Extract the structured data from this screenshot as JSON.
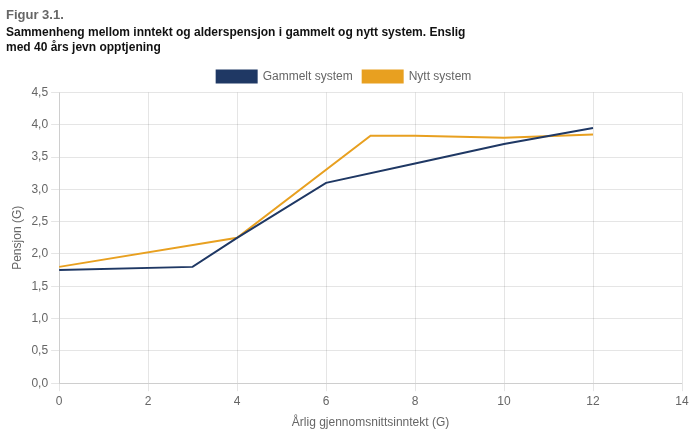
{
  "chart_data": {
    "type": "line",
    "title": "Figur 3.1.",
    "subtitle": [
      "Sammenheng mellom inntekt og alderspensjon i gammelt og nytt system. Enslig",
      "med 40 års jevn opptjening"
    ],
    "x_label": "Årlig gjennomsnittsinntekt (G)",
    "y_label": "Pensjon (G)",
    "series": [
      {
        "name": "Gammelt system",
        "color": "#1f3864",
        "x": [
          0,
          3,
          4,
          6,
          8,
          10,
          12
        ],
        "values": [
          1.75,
          1.8,
          2.25,
          3.1,
          3.4,
          3.7,
          3.95
        ]
      },
      {
        "name": "Nytt system",
        "color": "#e8a020",
        "x": [
          0,
          4,
          7,
          8,
          10,
          12
        ],
        "values": [
          1.8,
          2.25,
          3.83,
          3.83,
          3.8,
          3.85
        ]
      }
    ],
    "xlim": [
      0,
      14
    ],
    "ylim": [
      0,
      4.5
    ],
    "xticks": [
      0,
      2,
      4,
      6,
      8,
      10,
      12,
      14
    ],
    "yticks": [
      {
        "value": 0.0,
        "label": "0,0"
      },
      {
        "value": 0.5,
        "label": "0,5"
      },
      {
        "value": 1.0,
        "label": "1,0"
      },
      {
        "value": 1.5,
        "label": "1,5"
      },
      {
        "value": 2.0,
        "label": "2,0"
      },
      {
        "value": 2.5,
        "label": "2,5"
      },
      {
        "value": 3.0,
        "label": "3,0"
      },
      {
        "value": 3.5,
        "label": "3,5"
      },
      {
        "value": 4.0,
        "label": "4,0"
      },
      {
        "value": 4.5,
        "label": "4,5"
      }
    ],
    "grid": true,
    "legend": "top"
  }
}
